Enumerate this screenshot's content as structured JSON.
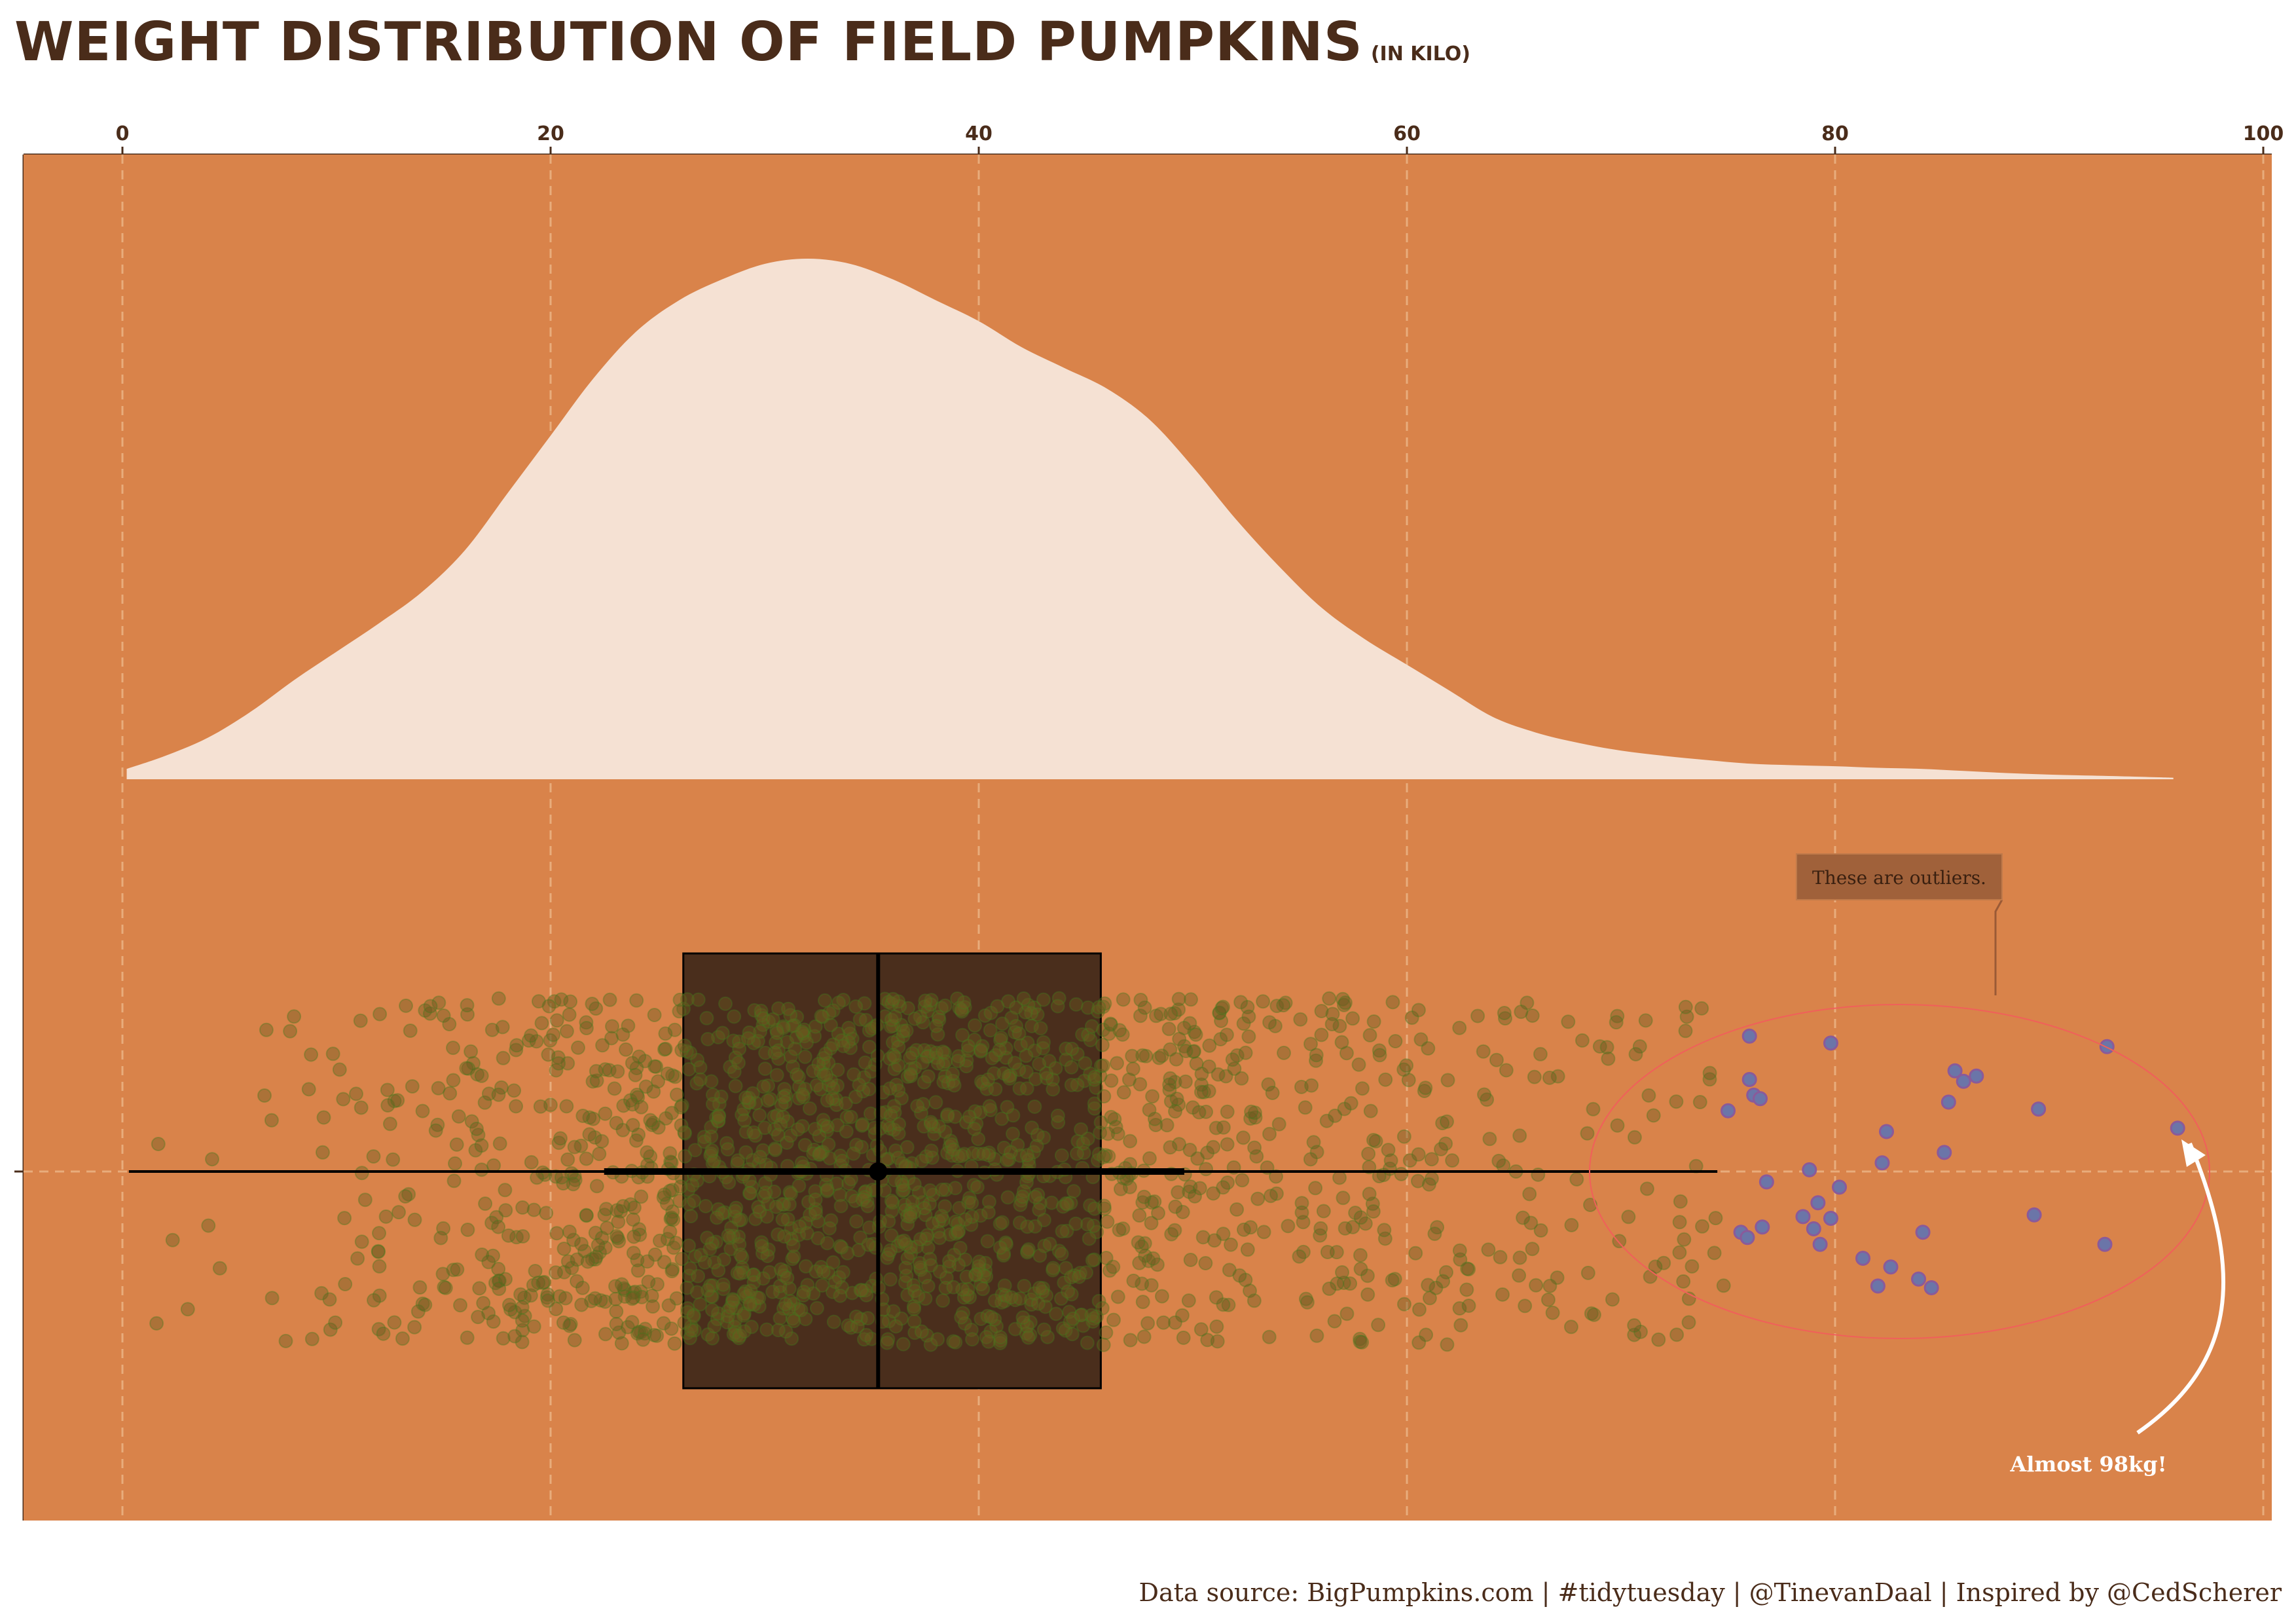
{
  "title": "WEIGHT DISTRIBUTION OF FIELD PUMPKINS",
  "subtitle": "(IN KILO)",
  "caption": "Data source: BigPumpkins.com | #tidytuesday | @TinevanDaal | Inspired by @CedScherer",
  "colors": {
    "panel": "#D9834A",
    "density_fill": "#F5E1D3",
    "box_fill": "#4A2E1C",
    "grid": "#E8AC7C",
    "text": "#4A2C1A",
    "jitter": "#6B5A1E",
    "outlier_fill": "#6B75A8",
    "ellipse": "#F0605A",
    "label_box": "#A0613A"
  },
  "annotations": {
    "outliers_label": "These are outliers.",
    "max_label": "Almost 98kg!"
  },
  "chart_data": {
    "type": "raincloud",
    "orientation": "horizontal",
    "x_axis": {
      "position": "top",
      "ticks": [
        0,
        20,
        40,
        60,
        80,
        100
      ],
      "xlim": [
        -4.6,
        100.4
      ]
    },
    "density": {
      "x": [
        0.2,
        2,
        4,
        6,
        8,
        10,
        12,
        14,
        16,
        18,
        20,
        22,
        24,
        26,
        28,
        30,
        32,
        34,
        36,
        38,
        40,
        42,
        44,
        46,
        48,
        50,
        52,
        54,
        56,
        58,
        60,
        62,
        64,
        66,
        68,
        70,
        72,
        74,
        76,
        78,
        80,
        82,
        84,
        86,
        88,
        90,
        92,
        94,
        95.8
      ],
      "y": [
        0.02,
        0.045,
        0.08,
        0.13,
        0.19,
        0.245,
        0.3,
        0.36,
        0.44,
        0.55,
        0.66,
        0.77,
        0.86,
        0.92,
        0.96,
        0.99,
        1.0,
        0.99,
        0.96,
        0.92,
        0.88,
        0.83,
        0.79,
        0.75,
        0.69,
        0.6,
        0.5,
        0.41,
        0.33,
        0.27,
        0.22,
        0.17,
        0.12,
        0.09,
        0.07,
        0.055,
        0.045,
        0.037,
        0.03,
        0.027,
        0.025,
        0.022,
        0.02,
        0.016,
        0.012,
        0.009,
        0.007,
        0.005,
        0.003
      ]
    },
    "boxplot": {
      "q1": 26.2,
      "median": 35.3,
      "q3": 45.7
    },
    "whisker": [
      0.3,
      74.5
    ],
    "point_interval": {
      "point": 35.3,
      "thick": [
        22.5,
        49.6
      ]
    },
    "outliers": [
      {
        "x": 76.0,
        "y": 0.78
      },
      {
        "x": 79.8,
        "y": 0.74
      },
      {
        "x": 92.7,
        "y": 0.72
      },
      {
        "x": 85.6,
        "y": 0.58
      },
      {
        "x": 86.6,
        "y": 0.55
      },
      {
        "x": 86.0,
        "y": 0.52
      },
      {
        "x": 76.0,
        "y": 0.53
      },
      {
        "x": 76.2,
        "y": 0.44
      },
      {
        "x": 76.5,
        "y": 0.42
      },
      {
        "x": 85.3,
        "y": 0.4
      },
      {
        "x": 75.0,
        "y": 0.35
      },
      {
        "x": 89.5,
        "y": 0.36
      },
      {
        "x": 82.4,
        "y": 0.23
      },
      {
        "x": 96.0,
        "y": 0.25
      },
      {
        "x": 85.1,
        "y": 0.11
      },
      {
        "x": 82.2,
        "y": 0.05
      },
      {
        "x": 76.8,
        "y": -0.06
      },
      {
        "x": 78.8,
        "y": 0.01
      },
      {
        "x": 80.2,
        "y": -0.09
      },
      {
        "x": 79.2,
        "y": -0.18
      },
      {
        "x": 78.5,
        "y": -0.26
      },
      {
        "x": 79.8,
        "y": -0.27
      },
      {
        "x": 89.3,
        "y": -0.25
      },
      {
        "x": 76.6,
        "y": -0.32
      },
      {
        "x": 75.6,
        "y": -0.35
      },
      {
        "x": 79.0,
        "y": -0.33
      },
      {
        "x": 84.1,
        "y": -0.35
      },
      {
        "x": 75.9,
        "y": -0.38
      },
      {
        "x": 79.3,
        "y": -0.42
      },
      {
        "x": 92.6,
        "y": -0.42
      },
      {
        "x": 81.3,
        "y": -0.5
      },
      {
        "x": 82.6,
        "y": -0.55
      },
      {
        "x": 83.9,
        "y": -0.62
      },
      {
        "x": 82.0,
        "y": -0.66
      },
      {
        "x": 84.5,
        "y": -0.67
      }
    ],
    "jitter_note": "about 2000 semi-transparent points spread between 0 and about 75 kg"
  }
}
